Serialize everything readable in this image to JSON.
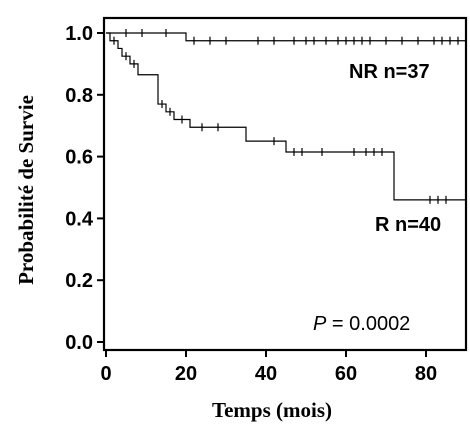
{
  "chart_data": {
    "type": "line",
    "xlabel": "Temps (mois)",
    "ylabel": "Probabilité  de Survie",
    "xlim": [
      0,
      90
    ],
    "ylim": [
      0,
      1.0
    ],
    "xticks": [
      "0",
      "20",
      "40",
      "60",
      "80"
    ],
    "yticks": [
      "0.0",
      "0.2",
      "0.4",
      "0.6",
      "0.8",
      "1.0"
    ],
    "grid": false,
    "step": true,
    "series": [
      {
        "name": "NR n=37",
        "color": "#000000",
        "steps": [
          [
            0,
            1.0
          ],
          [
            20,
            0.975
          ],
          [
            90,
            0.975
          ]
        ],
        "censored": [
          [
            5,
            1.0
          ],
          [
            9,
            1.0
          ],
          [
            15,
            1.0
          ],
          [
            22,
            0.975
          ],
          [
            26,
            0.975
          ],
          [
            30,
            0.975
          ],
          [
            38,
            0.975
          ],
          [
            42,
            0.975
          ],
          [
            47,
            0.975
          ],
          [
            50,
            0.975
          ],
          [
            52,
            0.975
          ],
          [
            55,
            0.975
          ],
          [
            58,
            0.975
          ],
          [
            60,
            0.975
          ],
          [
            62,
            0.975
          ],
          [
            64,
            0.975
          ],
          [
            66,
            0.975
          ],
          [
            70,
            0.975
          ],
          [
            74,
            0.975
          ],
          [
            78,
            0.975
          ],
          [
            82,
            0.975
          ],
          [
            84,
            0.975
          ],
          [
            86,
            0.975
          ],
          [
            88,
            0.975
          ]
        ]
      },
      {
        "name": "R n=40",
        "color": "#000000",
        "steps": [
          [
            0,
            1.0
          ],
          [
            1,
            0.975
          ],
          [
            3,
            0.95
          ],
          [
            4,
            0.925
          ],
          [
            6,
            0.9
          ],
          [
            8,
            0.865
          ],
          [
            13,
            0.77
          ],
          [
            15,
            0.745
          ],
          [
            17,
            0.72
          ],
          [
            21,
            0.695
          ],
          [
            35,
            0.65
          ],
          [
            45,
            0.615
          ],
          [
            72,
            0.46
          ],
          [
            90,
            0.46
          ]
        ],
        "censored": [
          [
            2,
            0.975
          ],
          [
            5,
            0.925
          ],
          [
            7,
            0.9
          ],
          [
            14,
            0.77
          ],
          [
            16,
            0.745
          ],
          [
            19,
            0.72
          ],
          [
            24,
            0.695
          ],
          [
            28,
            0.695
          ],
          [
            42,
            0.65
          ],
          [
            47,
            0.615
          ],
          [
            49,
            0.615
          ],
          [
            54,
            0.615
          ],
          [
            62,
            0.615
          ],
          [
            65,
            0.615
          ],
          [
            67,
            0.615
          ],
          [
            69,
            0.615
          ],
          [
            81,
            0.46
          ],
          [
            83,
            0.46
          ],
          [
            85,
            0.46
          ]
        ]
      }
    ],
    "annotations": {
      "nr_label": "NR n=37",
      "r_label": "R n=40",
      "p_symbol": "P",
      "p_value": " = 0.0002"
    }
  }
}
